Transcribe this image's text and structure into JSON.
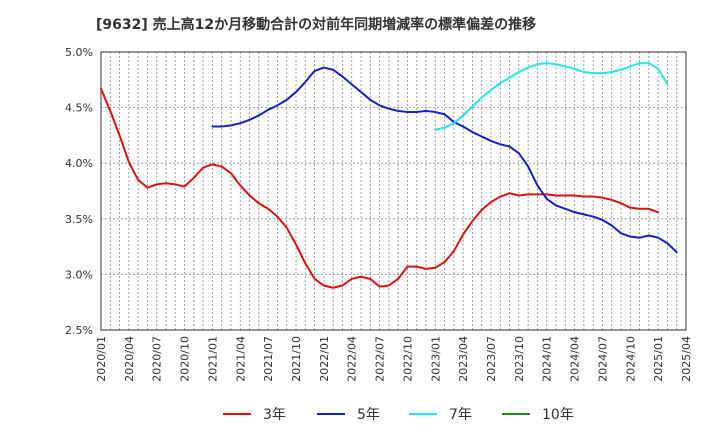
{
  "chart_data": {
    "type": "line",
    "title": "[9632]  売上高12か月移動合計の対前年同期増減率の標準偏差の推移",
    "xlabel": "",
    "ylabel": "",
    "ylim": [
      0.025,
      0.05
    ],
    "y_ticks": [
      "2.5%",
      "3.0%",
      "3.5%",
      "4.0%",
      "4.5%",
      "5.0%"
    ],
    "x_ticks": [
      "2020/01",
      "2020/04",
      "2020/07",
      "2020/10",
      "2021/01",
      "2021/04",
      "2021/07",
      "2021/10",
      "2022/01",
      "2022/04",
      "2022/07",
      "2022/10",
      "2023/01",
      "2023/04",
      "2023/07",
      "2023/10",
      "2024/01",
      "2024/04",
      "2024/07",
      "2024/10",
      "2025/01",
      "2025/04"
    ],
    "x_start": "2020/01",
    "grid": true,
    "legend_position": "bottom",
    "series": [
      {
        "name": "3年",
        "color": "#dd1111",
        "start": "2020/01",
        "values": [
          0.0467,
          0.0447,
          0.0425,
          0.0401,
          0.0385,
          0.0378,
          0.0381,
          0.0382,
          0.0381,
          0.0379,
          0.0387,
          0.0396,
          0.0399,
          0.0397,
          0.0391,
          0.038,
          0.0371,
          0.0364,
          0.0359,
          0.0352,
          0.0342,
          0.0327,
          0.031,
          0.0296,
          0.029,
          0.0288,
          0.029,
          0.0296,
          0.0298,
          0.0296,
          0.0289,
          0.029,
          0.0296,
          0.0307,
          0.0307,
          0.0305,
          0.0306,
          0.0311,
          0.0321,
          0.0336,
          0.0348,
          0.0358,
          0.0365,
          0.037,
          0.0373,
          0.0371,
          0.0372,
          0.0372,
          0.0372,
          0.0371,
          0.0371,
          0.0371,
          0.037,
          0.037,
          0.0369,
          0.0367,
          0.0364,
          0.036,
          0.0359,
          0.0359,
          0.0356
        ]
      },
      {
        "name": "5年",
        "color": "#1122cc",
        "start": "2021/01",
        "values": [
          0.0433,
          0.0433,
          0.0434,
          0.0436,
          0.0439,
          0.0443,
          0.0448,
          0.0452,
          0.0457,
          0.0464,
          0.0473,
          0.0483,
          0.0486,
          0.0484,
          0.0478,
          0.0471,
          0.0464,
          0.0457,
          0.0452,
          0.0449,
          0.0447,
          0.0446,
          0.0446,
          0.0447,
          0.0446,
          0.0444,
          0.0437,
          0.0433,
          0.0428,
          0.0424,
          0.042,
          0.0417,
          0.0415,
          0.0409,
          0.0397,
          0.038,
          0.0368,
          0.0362,
          0.0359,
          0.0356,
          0.0354,
          0.0352,
          0.0349,
          0.0344,
          0.0337,
          0.0334,
          0.0333,
          0.0335,
          0.0333,
          0.0328,
          0.032
        ]
      },
      {
        "name": "7年",
        "color": "#22e8e8",
        "start": "2023/01",
        "values": [
          0.043,
          0.0432,
          0.0436,
          0.0443,
          0.0451,
          0.0459,
          0.0466,
          0.0472,
          0.0477,
          0.0482,
          0.0486,
          0.0489,
          0.049,
          0.0489,
          0.0487,
          0.0485,
          0.0482,
          0.0481,
          0.0481,
          0.0482,
          0.0484,
          0.0487,
          0.049,
          0.049,
          0.0485,
          0.0471
        ]
      },
      {
        "name": "10年",
        "color": "#228822",
        "start": "2025/01",
        "values": []
      }
    ]
  }
}
